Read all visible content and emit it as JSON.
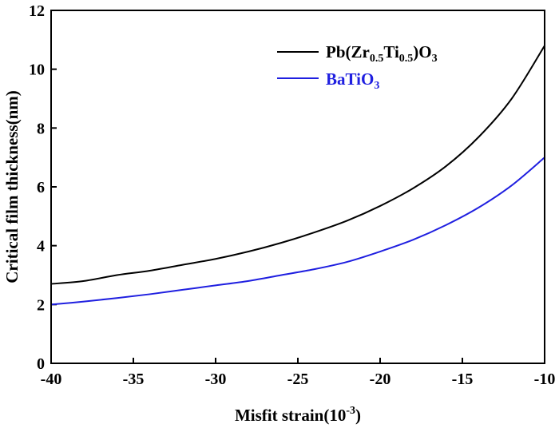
{
  "chart_data": {
    "type": "line",
    "xlabel": "Misfit strain(10",
    "xlabel_sup": "-3",
    "xlabel_end": ")",
    "ylabel": "Critical film thickness(nm)",
    "xlim": [
      -40,
      -10
    ],
    "ylim": [
      0,
      12
    ],
    "xticks": [
      -40,
      -35,
      -30,
      -25,
      -20,
      -15,
      -10
    ],
    "yticks": [
      0,
      2,
      4,
      6,
      8,
      10,
      12
    ],
    "xtick_labels": [
      "-40",
      "-35",
      "-30",
      "-25",
      "-20",
      "-15",
      "-10"
    ],
    "ytick_labels": [
      "0",
      "2",
      "4",
      "6",
      "8",
      "10",
      "12"
    ],
    "legend_position": "top-right",
    "series": [
      {
        "name": "Pb(Zr0.5Ti0.5)O3",
        "legend": {
          "a": "Pb(Zr",
          "b": "0.5",
          "c": "Ti",
          "d": "0.5",
          "e": ")O",
          "f": "3"
        },
        "color": "#000000",
        "x": [
          -40,
          -38,
          -36,
          -34,
          -32,
          -30,
          -28,
          -26,
          -24,
          -22,
          -20,
          -18,
          -16,
          -14,
          -12,
          -10
        ],
        "y": [
          2.7,
          2.8,
          3.0,
          3.15,
          3.35,
          3.55,
          3.8,
          4.1,
          4.45,
          4.85,
          5.35,
          5.95,
          6.7,
          7.7,
          9.0,
          10.8
        ]
      },
      {
        "name": "BaTiO3",
        "legend": {
          "a": "BaTiO",
          "b": "3"
        },
        "color": "#1f1fe0",
        "x": [
          -40,
          -38,
          -36,
          -34,
          -32,
          -30,
          -28,
          -26,
          -24,
          -22,
          -20,
          -18,
          -16,
          -14,
          -12,
          -10
        ],
        "y": [
          2.0,
          2.1,
          2.22,
          2.35,
          2.5,
          2.65,
          2.8,
          3.0,
          3.2,
          3.45,
          3.8,
          4.2,
          4.7,
          5.3,
          6.05,
          7.0
        ]
      }
    ]
  }
}
